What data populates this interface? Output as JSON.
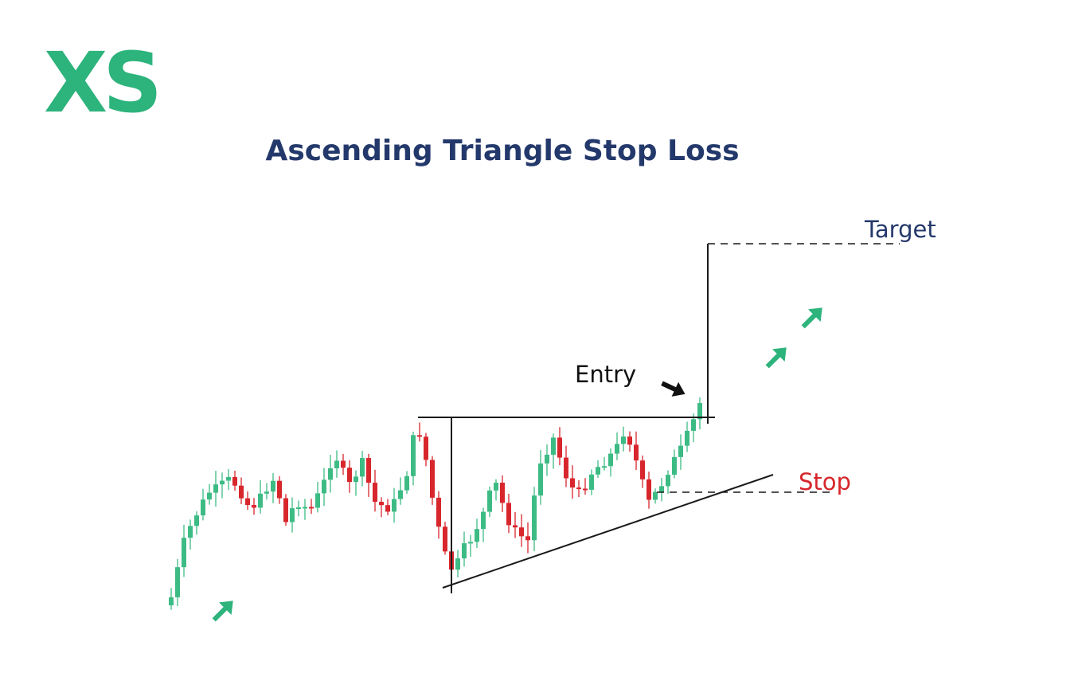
{
  "logo": "XS",
  "title": "Ascending Triangle Stop Loss",
  "labels": {
    "target": "Target",
    "entry": "Entry",
    "stop": "Stop"
  }
}
